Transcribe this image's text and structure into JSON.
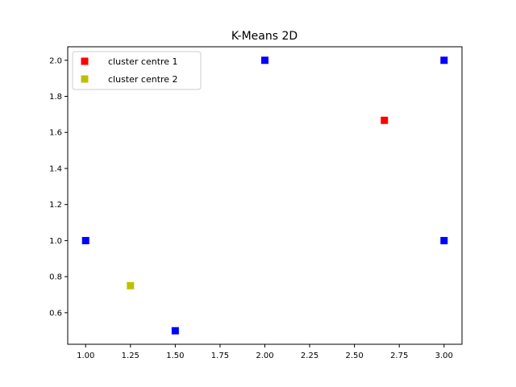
{
  "chart_data": {
    "type": "scatter",
    "title": "K-Means 2D",
    "xlabel": "",
    "ylabel": "",
    "xlim": [
      0.9,
      3.1
    ],
    "ylim": [
      0.425,
      2.075
    ],
    "grid": false,
    "legend_position": "top-left",
    "x_ticks": [
      "1.00",
      "1.25",
      "1.50",
      "1.75",
      "2.00",
      "2.25",
      "2.50",
      "2.75",
      "3.00"
    ],
    "y_ticks": [
      "0.6",
      "0.8",
      "1.0",
      "1.2",
      "1.4",
      "1.6",
      "1.8",
      "2.0"
    ],
    "series": [
      {
        "name": "cluster centre 1",
        "color": "#ff0000",
        "marker": "square",
        "points": [
          {
            "x": 2.667,
            "y": 1.667
          }
        ]
      },
      {
        "name": "cluster centre 2",
        "color": "#bfbf00",
        "marker": "square",
        "points": [
          {
            "x": 1.25,
            "y": 0.75
          }
        ]
      },
      {
        "color": "#0000ff",
        "marker": "square",
        "points": [
          {
            "x": 1.0,
            "y": 1.0
          },
          {
            "x": 1.5,
            "y": 0.5
          },
          {
            "x": 2.0,
            "y": 2.0
          },
          {
            "x": 3.0,
            "y": 2.0
          },
          {
            "x": 3.0,
            "y": 1.0
          }
        ]
      }
    ]
  }
}
